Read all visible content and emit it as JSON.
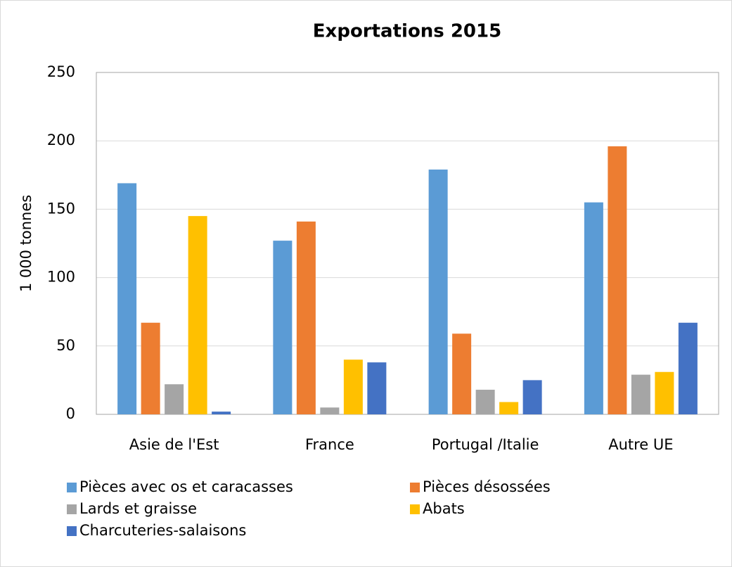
{
  "chart_data": {
    "type": "bar",
    "title": "Exportations 2015",
    "y_label": "1 000 tonnes",
    "categories": [
      "Asie de l'Est",
      "France",
      "Portugal /Italie",
      "Autre UE"
    ],
    "series": [
      {
        "name": "Pièces avec os et caracasses",
        "color": "#5b9bd5",
        "values": [
          169,
          127,
          179,
          155
        ]
      },
      {
        "name": "Pièces désossées",
        "color": "#ed7d31",
        "values": [
          67,
          141,
          59,
          196
        ]
      },
      {
        "name": "Lards et graisse",
        "color": "#a5a5a5",
        "values": [
          22,
          5,
          18,
          29
        ]
      },
      {
        "name": "Abats",
        "color": "#ffc000",
        "values": [
          145,
          40,
          9,
          31
        ]
      },
      {
        "name": "Charcuteries-salaisons",
        "color": "#4472c4",
        "values": [
          2,
          38,
          25,
          67
        ]
      }
    ],
    "ylim": [
      0,
      250
    ],
    "yticks": [
      0,
      50,
      100,
      150,
      200,
      250
    ],
    "grid": true,
    "legend": "bottom"
  }
}
